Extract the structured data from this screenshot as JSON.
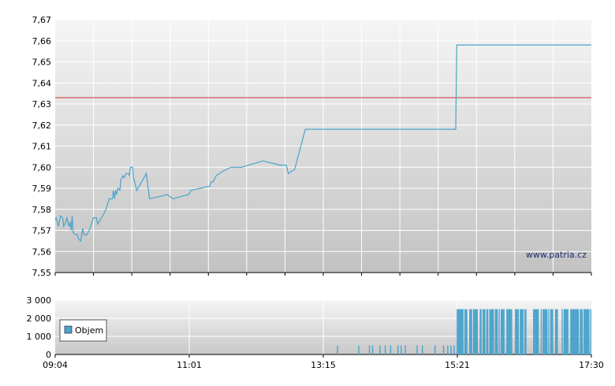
{
  "watermark": "www.patria.cz",
  "colors": {
    "price_line": "#4aa3cc",
    "reference_line": "#cc3333",
    "volume_bar": "#4aa3cc",
    "grid": "#ffffff",
    "plot_top": "#f4f4f4",
    "plot_bottom": "#c4c4c4"
  },
  "chart_data": [
    {
      "type": "line",
      "title": "",
      "xlabel": "",
      "ylabel": "",
      "ylim": [
        7.55,
        7.67
      ],
      "yticks": [
        "7,55",
        "7,56",
        "7,57",
        "7,58",
        "7,59",
        "7,60",
        "7,61",
        "7,62",
        "7,63",
        "7,64",
        "7,65",
        "7,66",
        "7,67"
      ],
      "x_time_range": [
        "09:04",
        "17:30"
      ],
      "reference_line": 7.633,
      "grid": true,
      "series": [
        {
          "values_time_price": [
            [
              "09:04",
              7.575
            ],
            [
              "09:05",
              7.576
            ],
            [
              "09:07",
              7.572
            ],
            [
              "09:09",
              7.577
            ],
            [
              "09:11",
              7.576
            ],
            [
              "09:12",
              7.572
            ],
            [
              "09:14",
              7.574
            ],
            [
              "09:15",
              7.576
            ],
            [
              "09:17",
              7.572
            ],
            [
              "09:18",
              7.574
            ],
            [
              "09:19",
              7.57
            ],
            [
              "09:20",
              7.577
            ],
            [
              "09:21",
              7.569
            ],
            [
              "09:23",
              7.568
            ],
            [
              "09:25",
              7.568
            ],
            [
              "09:26",
              7.566
            ],
            [
              "09:28",
              7.565
            ],
            [
              "09:29",
              7.568
            ],
            [
              "09:30",
              7.571
            ],
            [
              "09:31",
              7.568
            ],
            [
              "09:34",
              7.568
            ],
            [
              "09:37",
              7.571
            ],
            [
              "09:40",
              7.576
            ],
            [
              "09:43",
              7.576
            ],
            [
              "09:44",
              7.573
            ],
            [
              "09:49",
              7.577
            ],
            [
              "09:52",
              7.58
            ],
            [
              "09:55",
              7.585
            ],
            [
              "09:58",
              7.585
            ],
            [
              "09:59",
              7.589
            ],
            [
              "10:00",
              7.585
            ],
            [
              "10:01",
              7.589
            ],
            [
              "10:02",
              7.587
            ],
            [
              "10:03",
              7.59
            ],
            [
              "10:05",
              7.589
            ],
            [
              "10:06",
              7.594
            ],
            [
              "10:08",
              7.596
            ],
            [
              "10:09",
              7.595
            ],
            [
              "10:11",
              7.597
            ],
            [
              "10:13",
              7.597
            ],
            [
              "10:14",
              7.596
            ],
            [
              "10:15",
              7.6
            ],
            [
              "10:17",
              7.6
            ],
            [
              "10:18",
              7.595
            ],
            [
              "10:21",
              7.589
            ],
            [
              "10:30",
              7.597
            ],
            [
              "10:33",
              7.585
            ],
            [
              "10:50",
              7.587
            ],
            [
              "10:55",
              7.585
            ],
            [
              "11:10",
              7.587
            ],
            [
              "11:12",
              7.589
            ],
            [
              "11:30",
              7.591
            ],
            [
              "11:31",
              7.593
            ],
            [
              "11:33",
              7.593
            ],
            [
              "11:36",
              7.596
            ],
            [
              "11:42",
              7.598
            ],
            [
              "11:50",
              7.6
            ],
            [
              "12:00",
              7.6
            ],
            [
              "12:20",
              7.603
            ],
            [
              "12:36",
              7.601
            ],
            [
              "12:42",
              7.601
            ],
            [
              "12:44",
              7.597
            ],
            [
              "12:50",
              7.599
            ],
            [
              "13:00",
              7.618
            ],
            [
              "15:22",
              7.618
            ],
            [
              "15:23",
              7.658
            ],
            [
              "17:30",
              7.658
            ]
          ]
        }
      ]
    },
    {
      "type": "bar",
      "title": "",
      "xlabel": "",
      "ylabel": "",
      "ylim": [
        0,
        3000
      ],
      "yticks": [
        "0",
        "1 000",
        "2 000",
        "3 000"
      ],
      "xticks": [
        "09:04",
        "11:01",
        "13:15",
        "15:21",
        "17:30"
      ],
      "legend": {
        "placement": "left",
        "entries": [
          "Objem"
        ]
      },
      "grid": true,
      "series": [
        {
          "name": "Objem",
          "early_trades_time_volume": [
            [
              "13:30",
              500
            ],
            [
              "13:50",
              500
            ],
            [
              "14:00",
              500
            ],
            [
              "14:03",
              500
            ],
            [
              "14:10",
              500
            ],
            [
              "14:15",
              500
            ],
            [
              "14:20",
              500
            ],
            [
              "14:27",
              500
            ],
            [
              "14:30",
              500
            ],
            [
              "14:34",
              500
            ],
            [
              "14:45",
              500
            ],
            [
              "14:50",
              500
            ],
            [
              "15:02",
              500
            ],
            [
              "15:10",
              500
            ],
            [
              "15:14",
              500
            ],
            [
              "15:17",
              500
            ],
            [
              "15:20",
              500
            ]
          ],
          "late_trades_volume": 2500,
          "late_trades_range": [
            "15:23",
            "17:30"
          ]
        }
      ]
    }
  ]
}
